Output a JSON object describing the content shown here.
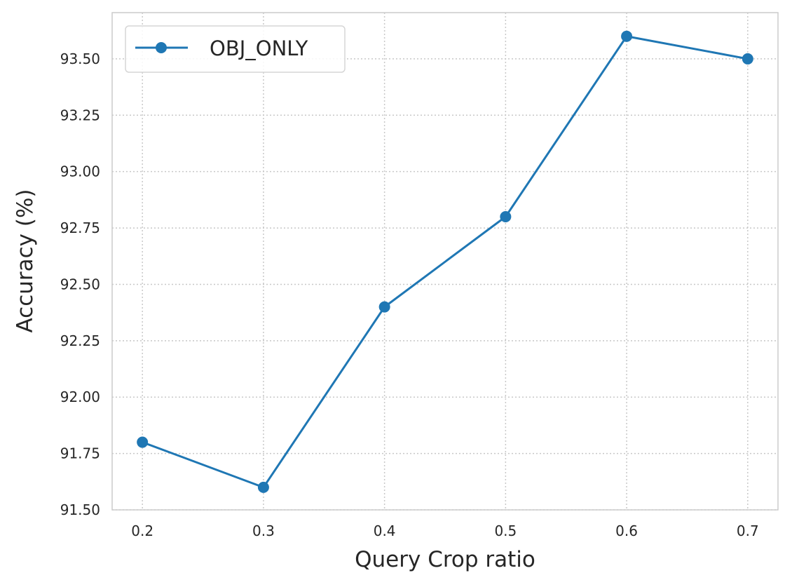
{
  "chart_data": {
    "type": "line",
    "title": "",
    "xlabel": "Query Crop ratio",
    "ylabel": "Accuracy (%)",
    "x_ticks": [
      "0.2",
      "0.3",
      "0.4",
      "0.5",
      "0.6",
      "0.7"
    ],
    "y_ticks": [
      "91.50",
      "91.75",
      "92.00",
      "92.25",
      "92.50",
      "92.75",
      "93.00",
      "93.25",
      "93.50"
    ],
    "xlim": [
      0.175,
      0.725
    ],
    "ylim": [
      91.5,
      93.705
    ],
    "grid": true,
    "legend_position": "top-left",
    "series": [
      {
        "name": "OBJ_ONLY",
        "color": "#1f77b4",
        "marker": "circle",
        "x": [
          0.2,
          0.3,
          0.4,
          0.5,
          0.6,
          0.7
        ],
        "y": [
          91.8,
          91.6,
          92.4,
          92.8,
          93.6,
          93.5
        ]
      }
    ]
  }
}
